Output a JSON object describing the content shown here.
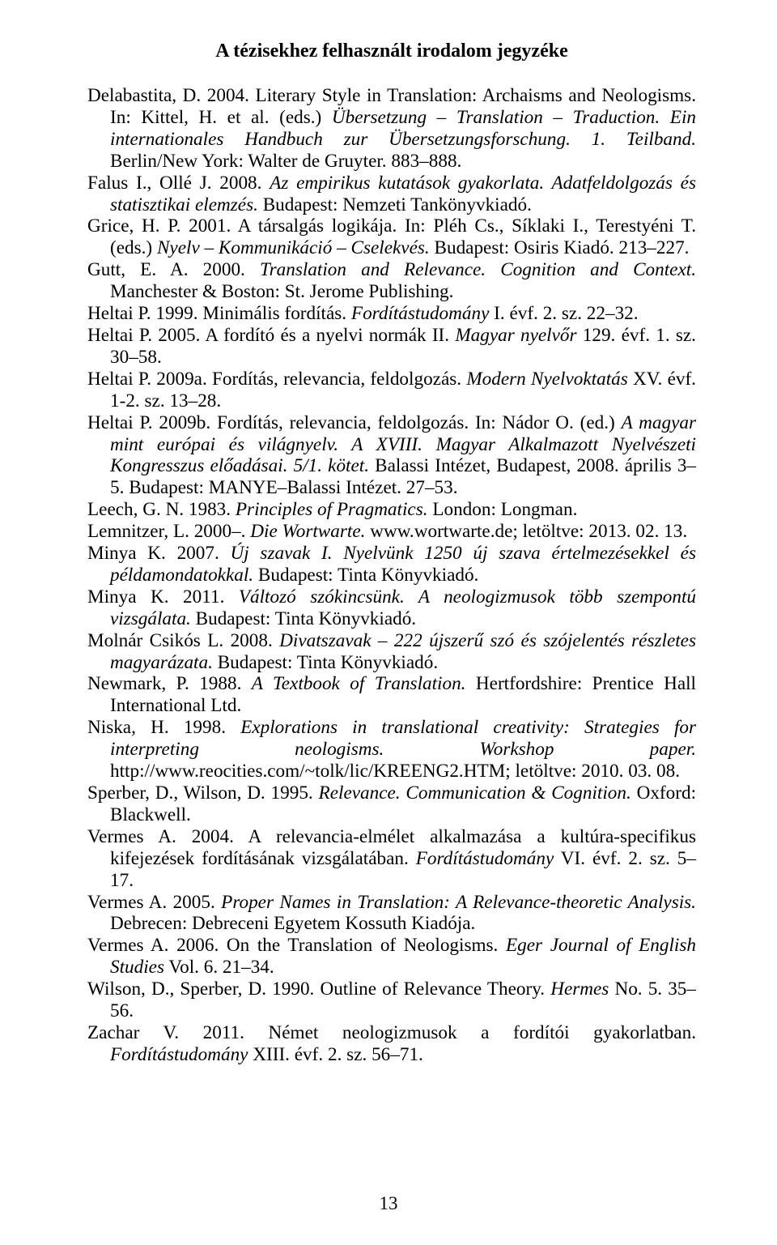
{
  "title": "A tézisekhez felhasznált irodalom jegyzéke",
  "page_number": "13",
  "refs": [
    [
      {
        "t": "Delabastita, D. 2004. Literary Style in Translation: Archaisms and Neologisms. In: Kittel, H. et al. (eds.) "
      },
      {
        "t": "Übersetzung – Translation – Traduction. Ein internationales Handbuch zur Übersetzungsforschung. 1. Teilband.",
        "i": true
      },
      {
        "t": " Berlin/New York: Walter de Gruyter. 883–888."
      }
    ],
    [
      {
        "t": "Falus I., Ollé J. 2008. "
      },
      {
        "t": "Az empirikus kutatások gyakorlata. Adatfeldolgozás és statisztikai elemzés.",
        "i": true
      },
      {
        "t": " Budapest: Nemzeti Tankönyvkiadó."
      }
    ],
    [
      {
        "t": "Grice, H. P. 2001. A társalgás logikája. In: Pléh Cs., Síklaki I., Terestyéni T. (eds.) "
      },
      {
        "t": "Nyelv – Kommunikáció – Cselekvés.",
        "i": true
      },
      {
        "t": " Budapest: Osiris Kiadó. 213–227."
      }
    ],
    [
      {
        "t": "Gutt, E. A. 2000. "
      },
      {
        "t": "Translation and Relevance. Cognition and Context.",
        "i": true
      },
      {
        "t": " Manchester & Boston: St. Jerome Publishing."
      }
    ],
    [
      {
        "t": "Heltai P. 1999. Minimális fordítás. "
      },
      {
        "t": "Fordítástudomány",
        "i": true
      },
      {
        "t": " I. évf. 2. sz. 22–32."
      }
    ],
    [
      {
        "t": "Heltai P. 2005. A fordító és a nyelvi normák II. "
      },
      {
        "t": "Magyar nyelvőr",
        "i": true
      },
      {
        "t": " 129. évf. 1. sz. 30–58."
      }
    ],
    [
      {
        "t": "Heltai P. 2009a. Fordítás, relevancia, feldolgozás. "
      },
      {
        "t": "Modern Nyelvoktatás",
        "i": true
      },
      {
        "t": " XV. évf. 1-2. sz. 13–28."
      }
    ],
    [
      {
        "t": "Heltai P. 2009b. Fordítás, relevancia, feldolgozás. In: Nádor O. (ed.) "
      },
      {
        "t": "A magyar mint európai és világnyelv. A XVIII. Magyar Alkalmazott Nyelvészeti Kongresszus előadásai. 5/1. kötet.",
        "i": true
      },
      {
        "t": " Balassi Intézet, Budapest, 2008. április 3–5. Budapest: MANYE–Balassi Intézet. 27–53."
      }
    ],
    [
      {
        "t": "Leech, G. N. 1983. "
      },
      {
        "t": "Principles of Pragmatics.",
        "i": true
      },
      {
        "t": " London: Longman."
      }
    ],
    [
      {
        "t": "Lemnitzer, L. 2000–. "
      },
      {
        "t": "Die Wortwarte.",
        "i": true
      },
      {
        "t": " www.wortwarte.de; letöltve: 2013. 02. 13."
      }
    ],
    [
      {
        "t": "Minya K. 2007. "
      },
      {
        "t": "Új szavak I. Nyelvünk 1250 új szava értelmezésekkel és példamondatokkal.",
        "i": true
      },
      {
        "t": " Budapest: Tinta Könyvkiadó."
      }
    ],
    [
      {
        "t": "Minya K. 2011. "
      },
      {
        "t": "Változó szókincsünk. A neologizmusok több szempontú vizsgálata.",
        "i": true
      },
      {
        "t": " Budapest: Tinta Könyvkiadó."
      }
    ],
    [
      {
        "t": "Molnár Csikós L. 2008. "
      },
      {
        "t": "Divatszavak – 222 újszerű szó és szójelentés részletes magyarázata.",
        "i": true
      },
      {
        "t": " Budapest: Tinta Könyvkiadó."
      }
    ],
    [
      {
        "t": "Newmark, P. 1988. "
      },
      {
        "t": "A Textbook of Translation.",
        "i": true
      },
      {
        "t": " Hertfordshire: Prentice Hall International Ltd."
      }
    ],
    [
      {
        "t": "Niska, H. 1998. "
      },
      {
        "t": "Explorations in translational creativity: Strategies for interpreting neologisms. Workshop paper.",
        "i": true
      },
      {
        "t": " http://www.reocities.com/~tolk/lic/KREENG2.HTM; letöltve: 2010. 03. 08."
      }
    ],
    [
      {
        "t": "Sperber, D., Wilson, D. 1995. "
      },
      {
        "t": "Relevance. Communication & Cognition.",
        "i": true
      },
      {
        "t": " Oxford: Blackwell."
      }
    ],
    [
      {
        "t": "Vermes A. 2004. A relevancia-elmélet alkalmazása a kultúra-specifikus kifejezések fordításának vizsgálatában. "
      },
      {
        "t": "Fordítástudomány",
        "i": true
      },
      {
        "t": " VI. évf. 2. sz. 5–17."
      }
    ],
    [
      {
        "t": "Vermes A. 2005. "
      },
      {
        "t": "Proper Names in Translation: A Relevance-theoretic Analysis.",
        "i": true
      },
      {
        "t": " Debrecen: Debreceni Egyetem Kossuth Kiadója."
      }
    ],
    [
      {
        "t": "Vermes A. 2006. On the Translation of Neologisms. "
      },
      {
        "t": "Eger Journal of English Studies",
        "i": true
      },
      {
        "t": " Vol. 6. 21–34."
      }
    ],
    [
      {
        "t": "Wilson, D., Sperber, D. 1990. Outline of Relevance Theory. "
      },
      {
        "t": "Hermes",
        "i": true
      },
      {
        "t": " No. 5. 35–56."
      }
    ],
    [
      {
        "t": "Zachar V. 2011. Német neologizmusok a fordítói gyakorlatban. "
      },
      {
        "t": "Fordítástudomány",
        "i": true
      },
      {
        "t": " XIII. évf. 2. sz. 56–71."
      }
    ]
  ]
}
